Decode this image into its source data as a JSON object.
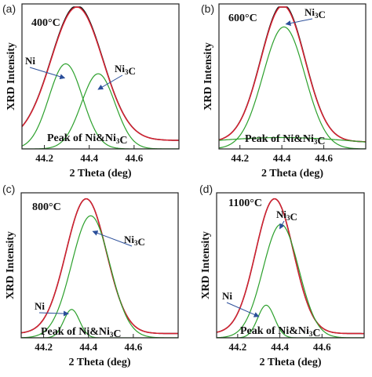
{
  "chart_data": [
    {
      "type": "line",
      "panel": "(a)",
      "annotation": "400°C",
      "xlabel": "2 Theta (deg)",
      "ylabel": "XRD Intensity",
      "xlim": [
        44.1,
        44.8
      ],
      "ticks": [
        "44.2",
        "44.4",
        "44.6"
      ],
      "tick_values": [
        44.2,
        44.4,
        44.6
      ],
      "peak_label": "Peak of Ni&Ni3C",
      "labels": [
        {
          "text": "Ni",
          "arrow_to": [
            44.29,
            0.5
          ]
        },
        {
          "text": "Ni3C",
          "arrow_to": [
            44.44,
            0.42
          ]
        }
      ],
      "series": [
        {
          "color": "#1a1a1a",
          "kind": "measured",
          "peaks": [
            {
              "center": 44.345,
              "amplitude": 0.95,
              "sigma": 0.115
            }
          ],
          "baseline": 0.06
        },
        {
          "color": "#d62030",
          "kind": "fit-sum",
          "peaks": [
            {
              "center": 44.345,
              "amplitude": 0.94,
              "sigma": 0.115
            }
          ],
          "baseline": 0.06
        },
        {
          "color": "#2ca02c",
          "kind": "component",
          "peaks": [
            {
              "center": 44.295,
              "amplitude": 0.6,
              "sigma": 0.075
            }
          ],
          "baseline": 0.0
        },
        {
          "color": "#2ca02c",
          "kind": "component",
          "peaks": [
            {
              "center": 44.44,
              "amplitude": 0.53,
              "sigma": 0.075
            }
          ],
          "baseline": 0.0
        }
      ]
    },
    {
      "type": "line",
      "panel": "(b)",
      "annotation": "600°C",
      "xlabel": "2 Theta (deg)",
      "ylabel": "XRD Intensity",
      "xlim": [
        44.1,
        44.8
      ],
      "ticks": [
        "44.2",
        "44.4",
        "44.6"
      ],
      "tick_values": [
        44.2,
        44.4,
        44.6
      ],
      "peak_label": "Peak of Ni&Ni3C",
      "labels": [
        {
          "text": "Ni3C",
          "arrow_to": [
            44.42,
            0.88
          ]
        }
      ],
      "series": [
        {
          "color": "#1a1a1a",
          "kind": "measured",
          "peaks": [
            {
              "center": 44.405,
              "amplitude": 0.97,
              "sigma": 0.105
            }
          ],
          "baseline": 0.05
        },
        {
          "color": "#d62030",
          "kind": "fit-sum",
          "peaks": [
            {
              "center": 44.405,
              "amplitude": 0.96,
              "sigma": 0.105
            }
          ],
          "baseline": 0.05
        },
        {
          "color": "#2ca02c",
          "kind": "component",
          "peaks": [
            {
              "center": 44.41,
              "amplitude": 0.86,
              "sigma": 0.1
            }
          ],
          "baseline": 0.0
        },
        {
          "color": "#2ca02c",
          "kind": "component",
          "peaks": [
            {
              "center": 44.4,
              "amplitude": 0.08,
              "sigma": 0.4
            }
          ],
          "baseline": 0.0
        }
      ]
    },
    {
      "type": "line",
      "panel": "(c)",
      "annotation": "800°C",
      "xlabel": "2 Theta (deg)",
      "ylabel": "XRD Intensity",
      "xlim": [
        44.1,
        44.8
      ],
      "ticks": [
        "44.2",
        "44.4",
        "44.6"
      ],
      "tick_values": [
        44.2,
        44.4,
        44.6
      ],
      "peak_label": "Peak of Ni&Ni3C",
      "labels": [
        {
          "text": "Ni3C",
          "arrow_to": [
            44.42,
            0.75
          ]
        },
        {
          "text": "Ni",
          "arrow_to": [
            44.31,
            0.17
          ]
        }
      ],
      "series": [
        {
          "color": "#1a1a1a",
          "kind": "measured",
          "peaks": [
            {
              "center": 44.39,
              "amplitude": 0.95,
              "sigma": 0.09
            }
          ],
          "baseline": 0.03
        },
        {
          "color": "#d62030",
          "kind": "fit-sum",
          "peaks": [
            {
              "center": 44.39,
              "amplitude": 0.95,
              "sigma": 0.09
            }
          ],
          "baseline": 0.03
        },
        {
          "color": "#2ca02c",
          "kind": "component",
          "peaks": [
            {
              "center": 44.41,
              "amplitude": 0.86,
              "sigma": 0.085
            }
          ],
          "baseline": 0.0
        },
        {
          "color": "#2ca02c",
          "kind": "component",
          "peaks": [
            {
              "center": 44.325,
              "amplitude": 0.2,
              "sigma": 0.035
            }
          ],
          "baseline": 0.0
        }
      ]
    },
    {
      "type": "line",
      "panel": "(d)",
      "annotation": "1100°C",
      "xlabel": "2 Theta (deg)",
      "ylabel": "XRD Intensity",
      "xlim": [
        44.1,
        44.8
      ],
      "ticks": [
        "44.2",
        "44.4",
        "44.6"
      ],
      "tick_values": [
        44.2,
        44.4,
        44.6
      ],
      "peak_label": "Peak of Ni&Ni3C",
      "labels": [
        {
          "text": "Ni3C",
          "arrow_to": [
            44.4,
            0.77
          ]
        },
        {
          "text": "Ni",
          "arrow_to": [
            44.3,
            0.15
          ]
        }
      ],
      "series": [
        {
          "color": "#1a1a1a",
          "kind": "measured",
          "peaks": [
            {
              "center": 44.375,
              "amplitude": 0.95,
              "sigma": 0.09
            }
          ],
          "baseline": 0.03
        },
        {
          "color": "#d62030",
          "kind": "fit-sum",
          "peaks": [
            {
              "center": 44.375,
              "amplitude": 0.95,
              "sigma": 0.09
            }
          ],
          "baseline": 0.03
        },
        {
          "color": "#2ca02c",
          "kind": "component",
          "peaks": [
            {
              "center": 44.405,
              "amplitude": 0.8,
              "sigma": 0.085
            }
          ],
          "baseline": 0.0
        },
        {
          "color": "#2ca02c",
          "kind": "component",
          "peaks": [
            {
              "center": 44.335,
              "amplitude": 0.23,
              "sigma": 0.04
            }
          ],
          "baseline": 0.0
        }
      ]
    }
  ]
}
